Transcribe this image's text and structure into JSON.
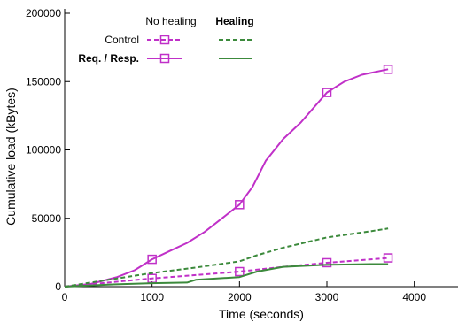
{
  "chart_data": {
    "type": "line",
    "xlabel": "Time (seconds)",
    "ylabel": "Cumulative load (kBytes)",
    "xlim": [
      0,
      4500
    ],
    "ylim": [
      0,
      200000
    ],
    "xticks": [
      0,
      1000,
      2000,
      3000,
      4000
    ],
    "yticks": [
      0,
      50000,
      100000,
      150000,
      200000
    ],
    "grid": false,
    "legend": {
      "placement": "top-left",
      "column_headers": [
        "No healing",
        "Healing"
      ],
      "row_labels": [
        "Control",
        "Req. / Resp."
      ]
    },
    "series": [
      {
        "legend_row": "Req. / Resp.",
        "legend_column": "No healing",
        "color": "#c030c8",
        "style": "solid",
        "marker": "square",
        "x": [
          0,
          300,
          600,
          800,
          1000,
          1200,
          1400,
          1600,
          1800,
          2000,
          2150,
          2300,
          2500,
          2700,
          3000,
          3200,
          3400,
          3700
        ],
        "y": [
          0,
          2000,
          7000,
          12000,
          20000,
          26000,
          32000,
          40000,
          50000,
          60000,
          73000,
          92000,
          108000,
          120000,
          142000,
          150000,
          155000,
          159000
        ],
        "markers_x": [
          1000,
          2000,
          3000,
          3700
        ],
        "markers_y": [
          20000,
          60000,
          142000,
          159000
        ]
      },
      {
        "legend_row": "Control",
        "legend_column": "No healing",
        "color": "#c030c8",
        "style": "dashed",
        "marker": "square",
        "x": [
          0,
          500,
          1000,
          1500,
          2000,
          2500,
          3000,
          3700
        ],
        "y": [
          0,
          3000,
          6000,
          8500,
          11000,
          14500,
          17500,
          21000
        ],
        "markers_x": [
          1000,
          2000,
          3000,
          3700
        ],
        "markers_y": [
          6000,
          11000,
          17500,
          21000
        ]
      },
      {
        "legend_row": "Control",
        "legend_column": "Healing",
        "color": "#3c8a3c",
        "style": "dashed",
        "marker": "none",
        "x": [
          0,
          500,
          1000,
          1500,
          2000,
          2200,
          2500,
          3000,
          3500,
          3700
        ],
        "y": [
          0,
          5000,
          10000,
          14000,
          18500,
          23000,
          28500,
          36000,
          40500,
          42500
        ]
      },
      {
        "legend_row": "Req. / Resp.",
        "legend_column": "Healing",
        "color": "#3c8a3c",
        "style": "solid",
        "marker": "none",
        "x": [
          0,
          500,
          1000,
          1400,
          1500,
          2000,
          2200,
          2500,
          3000,
          3500,
          3700
        ],
        "y": [
          0,
          1500,
          2500,
          3000,
          5000,
          7000,
          11000,
          14500,
          16000,
          16500,
          16500
        ]
      }
    ]
  }
}
